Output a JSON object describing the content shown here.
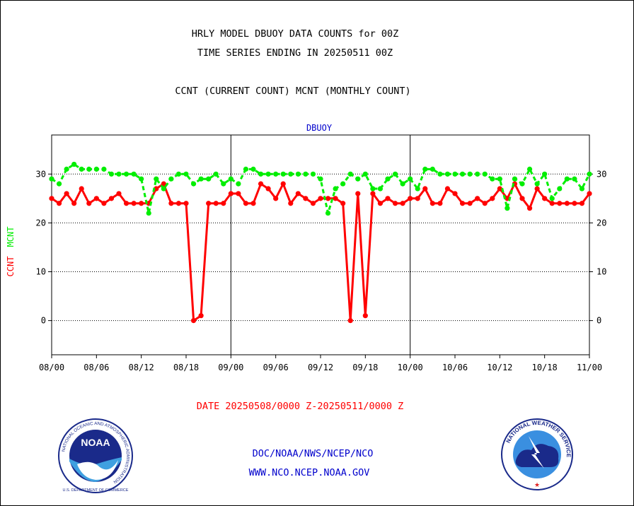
{
  "header": {
    "title_line1": "HRLY MODEL DBUOY DATA COUNTS for 00Z",
    "title_line2": "TIME SERIES ENDING IN 20250511 00Z",
    "subtitle": "CCNT (CURRENT COUNT) MCNT (MONTHLY COUNT)"
  },
  "footer": {
    "date_range": "DATE 20250508/0000 Z-20250511/0000 Z",
    "org_path": "DOC/NOAA/NWS/NCEP/NCO",
    "website": "WWW.NCO.NCEP.NOAA.GOV"
  },
  "logos": {
    "noaa_center": "NOAA",
    "noaa_ring": "NATIONAL OCEANIC AND ATMOSPHERIC ADMINISTRATION",
    "noaa_bottom": "U.S. DEPARTMENT OF COMMERCE",
    "nws_ring": "NATIONAL WEATHER SERVICE"
  },
  "colors": {
    "ccnt": "#ff0000",
    "mcnt": "#00ee00",
    "axis": "#000000",
    "label_blue": "#0000cc",
    "footer_red": "#ff0000"
  },
  "chart_data": {
    "type": "line",
    "title": "DBUOY",
    "ylabel_left_parts": [
      "CCNT",
      "MCNT"
    ],
    "ylim": [
      -7,
      38
    ],
    "yticks": [
      0,
      10,
      20,
      30
    ],
    "xticks": [
      "08/00",
      "08/06",
      "08/12",
      "08/18",
      "09/00",
      "09/06",
      "09/12",
      "09/18",
      "10/00",
      "10/06",
      "10/12",
      "10/18",
      "11/00"
    ],
    "x_hours_start": 0,
    "x_hours_end": 72,
    "grid": true,
    "series": [
      {
        "name": "CCNT",
        "color": "#ff0000",
        "x": [
          0,
          1,
          2,
          3,
          4,
          5,
          6,
          7,
          8,
          9,
          10,
          11,
          12,
          13,
          14,
          15,
          16,
          17,
          18,
          19,
          20,
          21,
          22,
          23,
          24,
          25,
          26,
          27,
          28,
          29,
          30,
          31,
          32,
          33,
          34,
          35,
          36,
          37,
          38,
          39,
          40,
          41,
          42,
          43,
          44,
          45,
          46,
          47,
          48,
          49,
          50,
          51,
          52,
          53,
          54,
          55,
          56,
          57,
          58,
          59,
          60,
          61,
          62,
          63,
          64,
          65,
          66,
          67,
          68,
          69,
          70,
          71,
          72
        ],
        "values": [
          25,
          24,
          26,
          24,
          27,
          24,
          25,
          24,
          25,
          26,
          24,
          24,
          24,
          24,
          27,
          28,
          24,
          24,
          24,
          0,
          1,
          24,
          24,
          24,
          26,
          26,
          24,
          24,
          28,
          27,
          25,
          28,
          24,
          26,
          25,
          24,
          25,
          25,
          25,
          24,
          0,
          26,
          1,
          26,
          24,
          25,
          24,
          24,
          25,
          25,
          27,
          24,
          24,
          27,
          26,
          24,
          24,
          25,
          24,
          25,
          27,
          25,
          28,
          25,
          23,
          27,
          25,
          24,
          24,
          24,
          24,
          24,
          26
        ]
      },
      {
        "name": "MCNT",
        "color": "#00ee00",
        "x": [
          0,
          1,
          2,
          3,
          4,
          5,
          6,
          7,
          8,
          9,
          10,
          11,
          12,
          13,
          14,
          15,
          16,
          17,
          18,
          19,
          20,
          21,
          22,
          23,
          24,
          25,
          26,
          27,
          28,
          29,
          30,
          31,
          32,
          33,
          34,
          35,
          36,
          37,
          38,
          39,
          40,
          41,
          42,
          43,
          44,
          45,
          46,
          47,
          48,
          49,
          50,
          51,
          52,
          53,
          54,
          55,
          56,
          57,
          58,
          59,
          60,
          61,
          62,
          63,
          64,
          65,
          66,
          67,
          68,
          69,
          70,
          71,
          72
        ],
        "values": [
          29,
          28,
          31,
          32,
          31,
          31,
          31,
          31,
          30,
          30,
          30,
          30,
          29,
          22,
          29,
          27,
          29,
          30,
          30,
          28,
          29,
          29,
          30,
          28,
          29,
          28,
          31,
          31,
          30,
          30,
          30,
          30,
          30,
          30,
          30,
          30,
          29,
          22,
          27,
          28,
          30,
          29,
          30,
          27,
          27,
          29,
          30,
          28,
          29,
          27,
          31,
          31,
          30,
          30,
          30,
          30,
          30,
          30,
          30,
          29,
          29,
          23,
          29,
          28,
          31,
          28,
          30,
          25,
          27,
          29,
          29,
          27,
          30
        ]
      }
    ]
  }
}
